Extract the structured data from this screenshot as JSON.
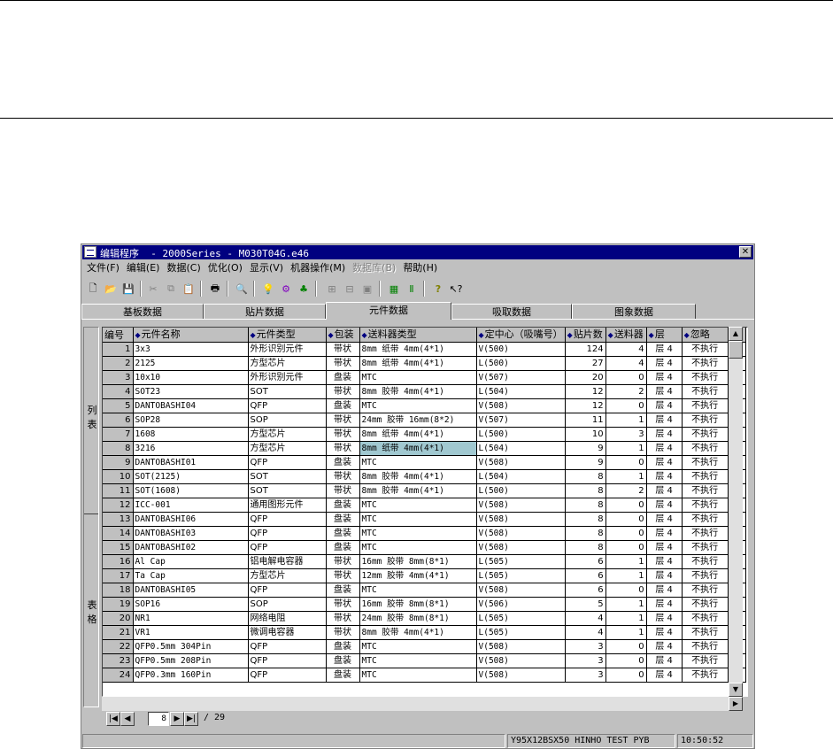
{
  "window": {
    "title": "编辑程序  - 2000Series - M030T04G.e46"
  },
  "menu": [
    "文件(F)",
    "编辑(E)",
    "数据(C)",
    "优化(O)",
    "显示(V)",
    "机器操作(M)",
    "数据库(B)",
    "帮助(H)"
  ],
  "menu_disabled_index": 6,
  "tabs": [
    "基板数据",
    "贴片数据",
    "元件数据",
    "吸取数据",
    "图象数据"
  ],
  "active_tab": 2,
  "sidebar": {
    "top_label": "列表",
    "bottom_label": "表格"
  },
  "table": {
    "columns": [
      "编号",
      "元件名称",
      "元件类型",
      "包装",
      "送料器类型",
      "定中心（吸嘴号）",
      "贴片数",
      "送料器",
      "层",
      "忽略"
    ],
    "rows": [
      [
        "1",
        "3x3",
        "外形识别元件",
        "带状",
        "8mm 纸带  4mm(4*1)",
        "V(500)",
        "124",
        "4",
        "层 4",
        "不执行"
      ],
      [
        "2",
        "2125",
        "方型芯片",
        "带状",
        "8mm 纸带  4mm(4*1)",
        "L(500)",
        "27",
        "4",
        "层 4",
        "不执行"
      ],
      [
        "3",
        "10x10",
        "外形识别元件",
        "盘装",
        "MTC",
        "V(507)",
        "20",
        "0",
        "层 4",
        "不执行"
      ],
      [
        "4",
        "SOT23",
        "SOT",
        "带状",
        "8mm 胶带  4mm(4*1)",
        "L(504)",
        "12",
        "2",
        "层 4",
        "不执行"
      ],
      [
        "5",
        "DANTOBASHI04",
        "QFP",
        "盘装",
        "MTC",
        "V(508)",
        "12",
        "0",
        "层 4",
        "不执行"
      ],
      [
        "6",
        "SOP28",
        "SOP",
        "带状",
        "24mm 胶带  16mm(8*2)",
        "V(507)",
        "11",
        "1",
        "层 4",
        "不执行"
      ],
      [
        "7",
        "1608",
        "方型芯片",
        "带状",
        "8mm 纸带  4mm(4*1)",
        "L(500)",
        "10",
        "3",
        "层 4",
        "不执行"
      ],
      [
        "8",
        "3216",
        "方型芯片",
        "带状",
        "8mm 纸带  4mm(4*1)",
        "L(504)",
        "9",
        "1",
        "层 4",
        "不执行"
      ],
      [
        "9",
        "DANTOBASHI01",
        "QFP",
        "盘装",
        "MTC",
        "V(508)",
        "9",
        "0",
        "层 4",
        "不执行"
      ],
      [
        "10",
        "SOT(2125)",
        "SOT",
        "带状",
        "8mm 胶带  4mm(4*1)",
        "L(504)",
        "8",
        "1",
        "层 4",
        "不执行"
      ],
      [
        "11",
        "SOT(1608)",
        "SOT",
        "带状",
        "8mm 胶带  4mm(4*1)",
        "L(500)",
        "8",
        "2",
        "层 4",
        "不执行"
      ],
      [
        "12",
        "ICC-001",
        "通用图形元件",
        "盘装",
        "MTC",
        "V(508)",
        "8",
        "0",
        "层 4",
        "不执行"
      ],
      [
        "13",
        "DANTOBASHI06",
        "QFP",
        "盘装",
        "MTC",
        "V(508)",
        "8",
        "0",
        "层 4",
        "不执行"
      ],
      [
        "14",
        "DANTOBASHI03",
        "QFP",
        "盘装",
        "MTC",
        "V(508)",
        "8",
        "0",
        "层 4",
        "不执行"
      ],
      [
        "15",
        "DANTOBASHI02",
        "QFP",
        "盘装",
        "MTC",
        "V(508)",
        "8",
        "0",
        "层 4",
        "不执行"
      ],
      [
        "16",
        "Al Cap",
        "铝电解电容器",
        "带状",
        "16mm 胶带  8mm(8*1)",
        "L(505)",
        "6",
        "1",
        "层 4",
        "不执行"
      ],
      [
        "17",
        "Ta Cap",
        "方型芯片",
        "带状",
        "12mm 胶带  4mm(4*1)",
        "L(505)",
        "6",
        "1",
        "层 4",
        "不执行"
      ],
      [
        "18",
        "DANTOBASHI05",
        "QFP",
        "盘装",
        "MTC",
        "V(508)",
        "6",
        "0",
        "层 4",
        "不执行"
      ],
      [
        "19",
        "SOP16",
        "SOP",
        "带状",
        "16mm 胶带  8mm(8*1)",
        "V(506)",
        "5",
        "1",
        "层 4",
        "不执行"
      ],
      [
        "20",
        "NR1",
        "网络电阻",
        "带状",
        "24mm 胶带  8mm(8*1)",
        "L(505)",
        "4",
        "1",
        "层 4",
        "不执行"
      ],
      [
        "21",
        "VR1",
        "微调电容器",
        "带状",
        "8mm 胶带  4mm(4*1)",
        "L(505)",
        "4",
        "1",
        "层 4",
        "不执行"
      ],
      [
        "22",
        "QFP0.5mm 304Pin",
        "QFP",
        "盘装",
        "MTC",
        "V(508)",
        "3",
        "0",
        "层 4",
        "不执行"
      ],
      [
        "23",
        "QFP0.5mm 208Pin",
        "QFP",
        "盘装",
        "MTC",
        "V(508)",
        "3",
        "0",
        "层 4",
        "不执行"
      ],
      [
        "24",
        "QFP0.3mm 160Pin",
        "QFP",
        "盘装",
        "MTC",
        "V(508)",
        "3",
        "0",
        "层 4",
        "不执行"
      ]
    ],
    "selected_row": 7,
    "selected_col": 4
  },
  "pager": {
    "current": "8",
    "total": "/ 29"
  },
  "status": {
    "info": "Y95X12BSX50 HINHO TEST PYB",
    "time": "10:50:52"
  }
}
